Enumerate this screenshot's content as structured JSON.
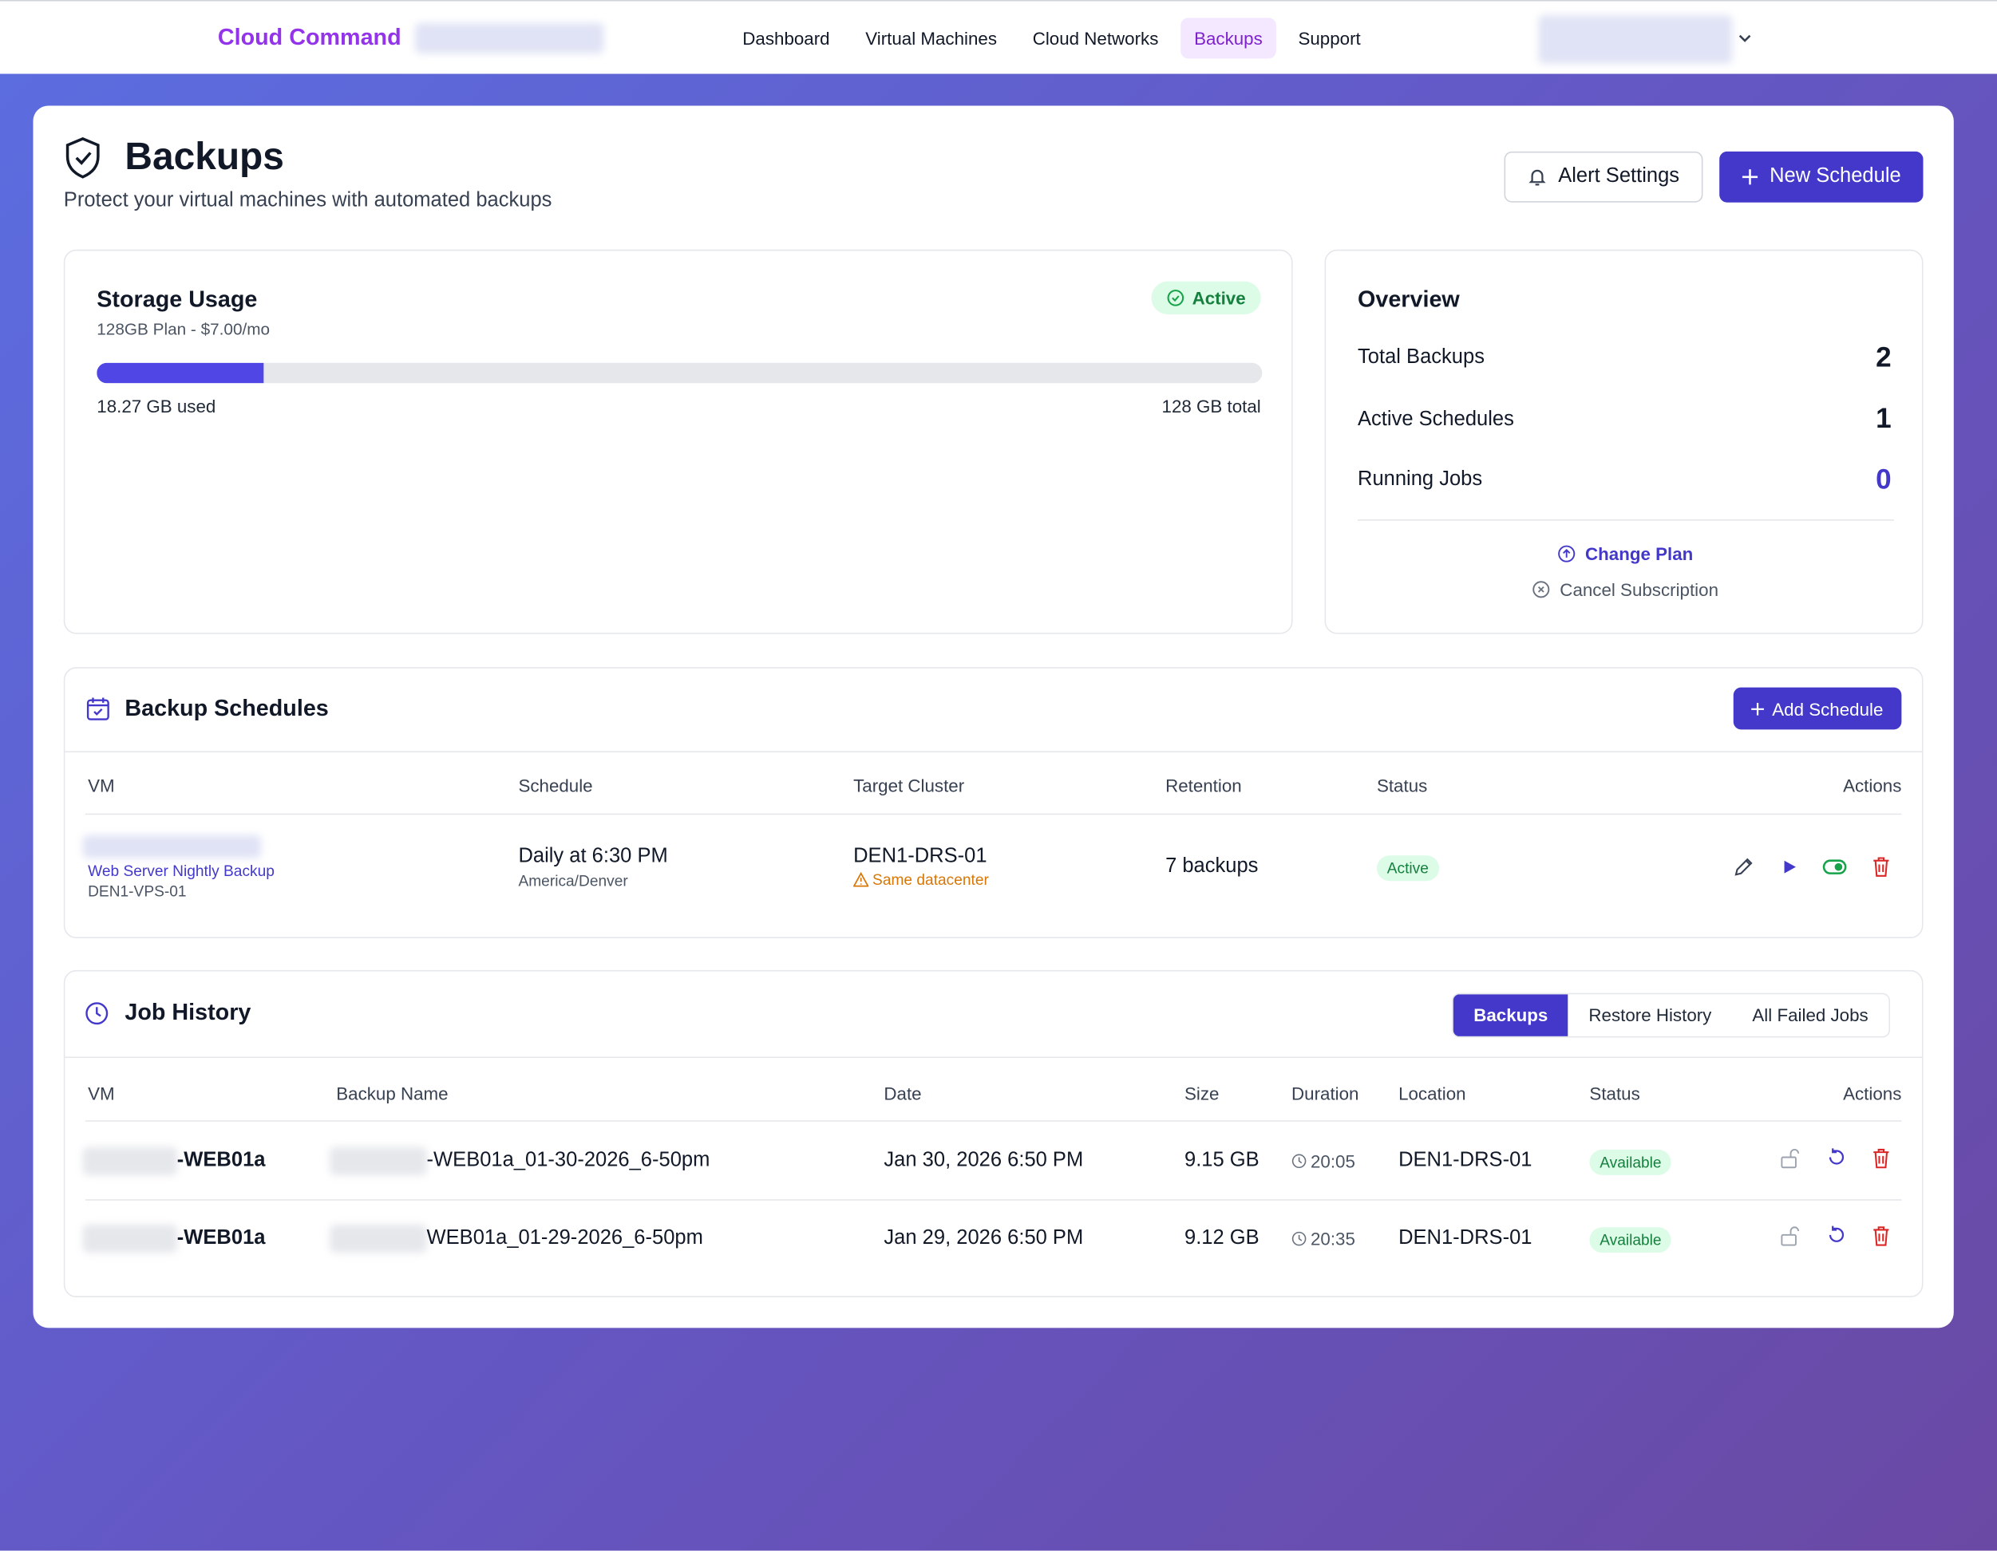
{
  "nav": {
    "brand": "Cloud Command",
    "links": [
      "Dashboard",
      "Virtual Machines",
      "Cloud Networks",
      "Backups",
      "Support"
    ]
  },
  "header": {
    "title": "Backups",
    "subtitle": "Protect your virtual machines with automated backups",
    "buttons": [
      "Alert Settings",
      "New Schedule"
    ]
  },
  "storage": {
    "title": "Storage Usage",
    "plan": "128GB Plan - $7.00/mo",
    "status": "Active",
    "used": 18.27,
    "total": 128,
    "used_label": "18.27 GB used",
    "total_label": "128 GB total"
  },
  "overview": {
    "title": "Overview",
    "stats": [
      {
        "label": "Total Backups",
        "value": 2
      },
      {
        "label": "Active Schedules",
        "value": 1
      },
      {
        "label": "Running Jobs",
        "value": 0
      }
    ],
    "links": [
      "Change Plan",
      "Cancel Subscription"
    ]
  },
  "schedules": {
    "title": "Backup Schedules",
    "button": "Add Schedule",
    "columns": [
      "VM",
      "Schedule",
      "Target Cluster",
      "Retention",
      "Status",
      "Actions"
    ],
    "rows": [
      {
        "name": "Web Server Nightly Backup",
        "vm": "DEN1-VPS-01",
        "schedule": "Daily at 6:30 PM",
        "timezone": "America/Denver",
        "cluster": "DEN1-DRS-01",
        "warning": "Same datacenter",
        "retention": "7 backups",
        "status": "Active"
      }
    ]
  },
  "jobs": {
    "title": "Job History",
    "tabs": [
      "Backups",
      "Restore History",
      "All Failed Jobs"
    ],
    "columns": [
      "VM",
      "Backup Name",
      "Date",
      "Size",
      "Duration",
      "Location",
      "Status",
      "Actions"
    ],
    "rows": [
      {
        "vm": "-WEB01a",
        "name": "-WEB01a_01-30-2026_6-50pm",
        "date": "Jan 30, 2026 6:50 PM",
        "size": "9.15 GB",
        "duration": "20:05",
        "location": "DEN1-DRS-01",
        "status": "Available"
      },
      {
        "vm": "-WEB01a",
        "name": "WEB01a_01-29-2026_6-50pm",
        "date": "Jan 29, 2026 6:50 PM",
        "size": "9.12 GB",
        "duration": "20:35",
        "location": "DEN1-DRS-01",
        "status": "Available"
      }
    ]
  }
}
